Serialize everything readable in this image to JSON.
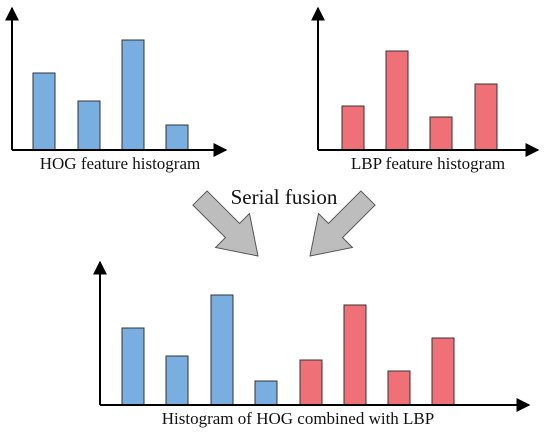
{
  "diagram": {
    "top_left_label": "HOG feature histogram",
    "top_right_label": "LBP feature histogram",
    "fusion_label": "Serial fusion",
    "bottom_label": "Histogram of HOG combined with LBP"
  }
}
